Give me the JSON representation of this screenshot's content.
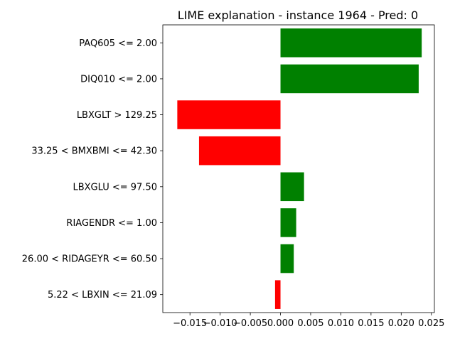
{
  "chart_data": {
    "type": "bar",
    "orientation": "horizontal",
    "title": "LIME explanation - instance 1964 - Pred: 0",
    "xlabel": "",
    "ylabel": "",
    "xlim": [
      -0.0195,
      0.0255
    ],
    "xticks": [
      -0.015,
      -0.01,
      -0.005,
      0.0,
      0.005,
      0.01,
      0.015,
      0.02,
      0.025
    ],
    "xtick_labels": [
      "−0.015",
      "−0.010",
      "−0.005",
      "0.000",
      "0.005",
      "0.010",
      "0.015",
      "0.020",
      "0.025"
    ],
    "categories": [
      "PAQ605 <= 2.00",
      "DIQ010 <= 2.00",
      "LBXGLT > 129.25",
      "33.25 < BMXBMI <= 42.30",
      "LBXGLU <= 97.50",
      "RIAGENDR <= 1.00",
      "26.00 < RIDAGEYR <= 60.50",
      "5.22 < LBXIN <= 21.09"
    ],
    "values": [
      0.0234,
      0.0229,
      -0.0171,
      -0.0135,
      0.0039,
      0.0026,
      0.0022,
      -0.0009
    ],
    "colors": {
      "positive": "#008000",
      "negative": "#ff0000"
    },
    "grid": false,
    "legend": "none"
  }
}
